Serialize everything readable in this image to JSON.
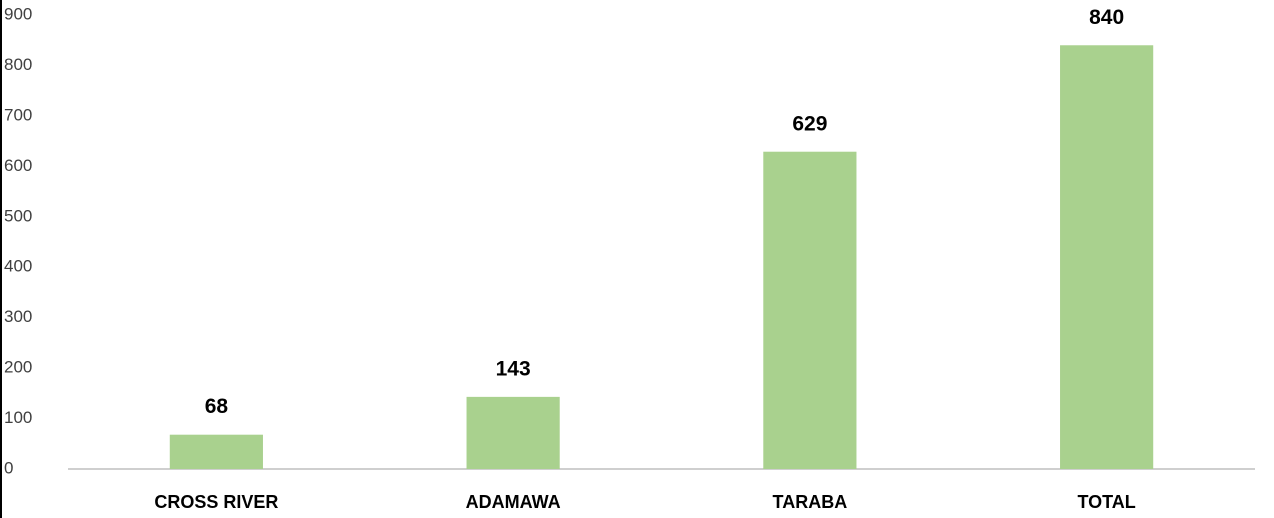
{
  "chart_data": {
    "type": "bar",
    "categories": [
      "CROSS RIVER",
      "ADAMAWA",
      "TARABA",
      "TOTAL"
    ],
    "values": [
      68,
      143,
      629,
      840
    ],
    "color": "#a9d18e",
    "ylim": [
      0,
      900
    ],
    "yticks": [
      0,
      100,
      200,
      300,
      400,
      500,
      600,
      700,
      800,
      900
    ],
    "grid": false
  }
}
